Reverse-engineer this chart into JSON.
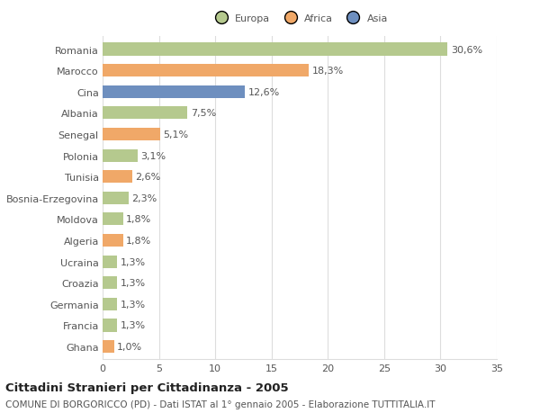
{
  "categories": [
    "Romania",
    "Marocco",
    "Cina",
    "Albania",
    "Senegal",
    "Polonia",
    "Tunisia",
    "Bosnia-Erzegovina",
    "Moldova",
    "Algeria",
    "Ucraina",
    "Croazia",
    "Germania",
    "Francia",
    "Ghana"
  ],
  "values": [
    30.6,
    18.3,
    12.6,
    7.5,
    5.1,
    3.1,
    2.6,
    2.3,
    1.8,
    1.8,
    1.3,
    1.3,
    1.3,
    1.3,
    1.0
  ],
  "labels": [
    "30,6%",
    "18,3%",
    "12,6%",
    "7,5%",
    "5,1%",
    "3,1%",
    "2,6%",
    "2,3%",
    "1,8%",
    "1,8%",
    "1,3%",
    "1,3%",
    "1,3%",
    "1,3%",
    "1,0%"
  ],
  "bar_colors": [
    "#b5c98e",
    "#f0a868",
    "#6e8fbf",
    "#b5c98e",
    "#f0a868",
    "#b5c98e",
    "#f0a868",
    "#b5c98e",
    "#b5c98e",
    "#f0a868",
    "#b5c98e",
    "#b5c98e",
    "#b5c98e",
    "#b5c98e",
    "#f0a868"
  ],
  "legend_labels": [
    "Europa",
    "Africa",
    "Asia"
  ],
  "legend_colors": [
    "#b5c98e",
    "#f0a868",
    "#6e8fbf"
  ],
  "title": "Cittadini Stranieri per Cittadinanza - 2005",
  "subtitle": "COMUNE DI BORGORICCO (PD) - Dati ISTAT al 1° gennaio 2005 - Elaborazione TUTTITALIA.IT",
  "xlim": [
    0,
    35
  ],
  "xticks": [
    0,
    5,
    10,
    15,
    20,
    25,
    30,
    35
  ],
  "background_color": "#ffffff",
  "grid_color": "#dddddd",
  "bar_height": 0.6,
  "label_fontsize": 8.0,
  "tick_fontsize": 8.0,
  "title_fontsize": 9.5,
  "subtitle_fontsize": 7.5,
  "text_color": "#555555",
  "title_color": "#222222"
}
